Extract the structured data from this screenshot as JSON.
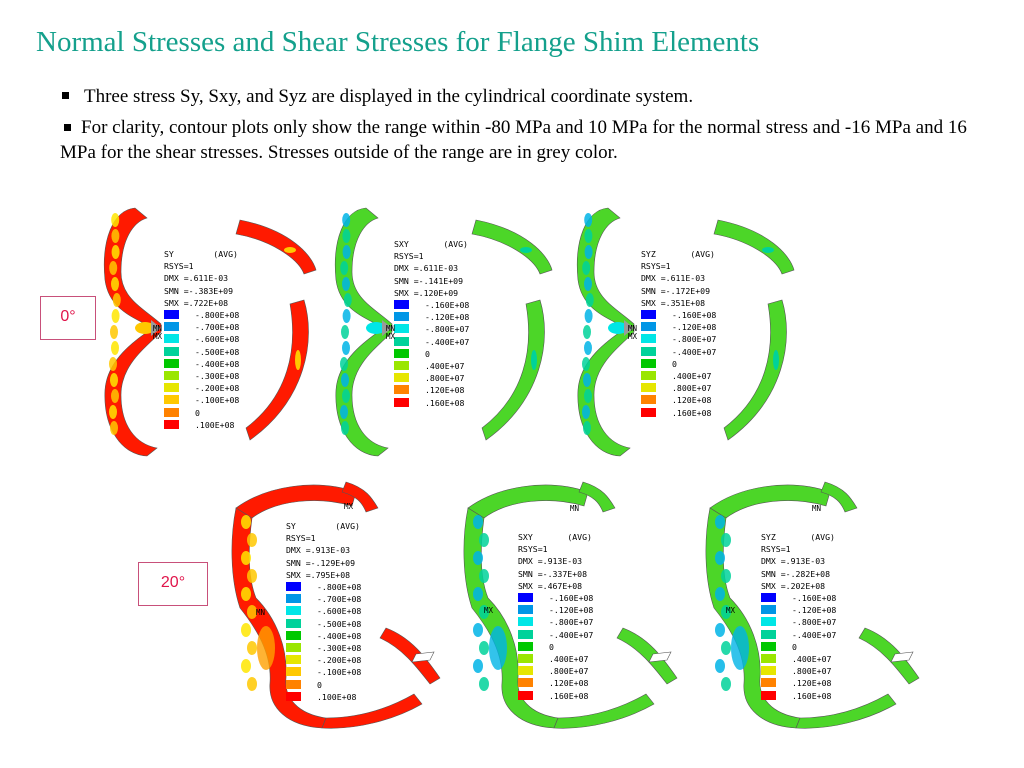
{
  "slide": {
    "title": "Normal Stresses and Shear Stresses for Flange Shim Elements",
    "bullets": [
      "Three stress Sy, Sxy, and Syz are displayed in the cylindrical coordinate system.",
      "For clarity, contour plots only show the range within -80 MPa and 10 MPa for the normal stress and -16 MPa and 16 MPa for the shear stresses.  Stresses outside of the range are in grey color."
    ],
    "angle_labels": [
      "0°",
      "20°"
    ]
  },
  "colors": {
    "title": "#14a08c",
    "levels": [
      "#0000ff",
      "#0096e6",
      "#00e6e6",
      "#00d29a",
      "#00c800",
      "#9ae600",
      "#e6e600",
      "#ffc800",
      "#ff8200",
      "#ff0000"
    ],
    "grey": "#9a9a9a"
  },
  "plots": [
    {
      "row": "0°",
      "stress": "SY",
      "avg": "(AVG)",
      "rsys": "RSYS=1",
      "dmx": "DMX =.611E-03",
      "smn": "SMN =-.383E+09",
      "smx": "SMX =.722E+08",
      "levels": [
        "-.800E+08",
        "-.700E+08",
        "-.600E+08",
        "-.500E+08",
        "-.400E+08",
        "-.300E+08",
        "-.200E+08",
        "-.100E+08",
        "0",
        ".100E+08"
      ],
      "markers": [
        "MX",
        "MN"
      ]
    },
    {
      "row": "0°",
      "stress": "SXY",
      "avg": "(AVG)",
      "rsys": "RSYS=1",
      "dmx": "DMX =.611E-03",
      "smn": "SMN =-.141E+09",
      "smx": "SMX =.120E+09",
      "levels": [
        "-.160E+08",
        "-.120E+08",
        "-.800E+07",
        "-.400E+07",
        "0",
        ".400E+07",
        ".800E+07",
        ".120E+08",
        ".160E+08"
      ],
      "markers": [
        "MX",
        "MN"
      ]
    },
    {
      "row": "0°",
      "stress": "SYZ",
      "avg": "(AVG)",
      "rsys": "RSYS=1",
      "dmx": "DMX =.611E-03",
      "smn": "SMN =-.172E+09",
      "smx": "SMX =.351E+08",
      "levels": [
        "-.160E+08",
        "-.120E+08",
        "-.800E+07",
        "-.400E+07",
        "0",
        ".400E+07",
        ".800E+07",
        ".120E+08",
        ".160E+08"
      ],
      "markers": [
        "MX",
        "MN"
      ]
    },
    {
      "row": "20°",
      "stress": "SY",
      "avg": "(AVG)",
      "rsys": "RSYS=1",
      "dmx": "DMX =.913E-03",
      "smn": "SMN =-.129E+09",
      "smx": "SMX =.795E+08",
      "levels": [
        "-.800E+08",
        "-.700E+08",
        "-.600E+08",
        "-.500E+08",
        "-.400E+08",
        "-.300E+08",
        "-.200E+08",
        "-.100E+08",
        "0",
        ".100E+08"
      ],
      "markers": [
        "MX",
        "MN"
      ]
    },
    {
      "row": "20°",
      "stress": "SXY",
      "avg": "(AVG)",
      "rsys": "RSYS=1",
      "dmx": "DMX =.913E-03",
      "smn": "SMN =-.337E+08",
      "smx": "SMX =.467E+08",
      "levels": [
        "-.160E+08",
        "-.120E+08",
        "-.800E+07",
        "-.400E+07",
        "0",
        ".400E+07",
        ".800E+07",
        ".120E+08",
        ".160E+08"
      ],
      "markers": [
        "MN",
        "MX"
      ]
    },
    {
      "row": "20°",
      "stress": "SYZ",
      "avg": "(AVG)",
      "rsys": "RSYS=1",
      "dmx": "DMX =.913E-03",
      "smn": "SMN =-.282E+08",
      "smx": "SMX =.202E+08",
      "levels": [
        "-.160E+08",
        "-.120E+08",
        "-.800E+07",
        "-.400E+07",
        "0",
        ".400E+07",
        ".800E+07",
        ".120E+08",
        ".160E+08"
      ],
      "markers": [
        "MN",
        "MX"
      ]
    }
  ]
}
